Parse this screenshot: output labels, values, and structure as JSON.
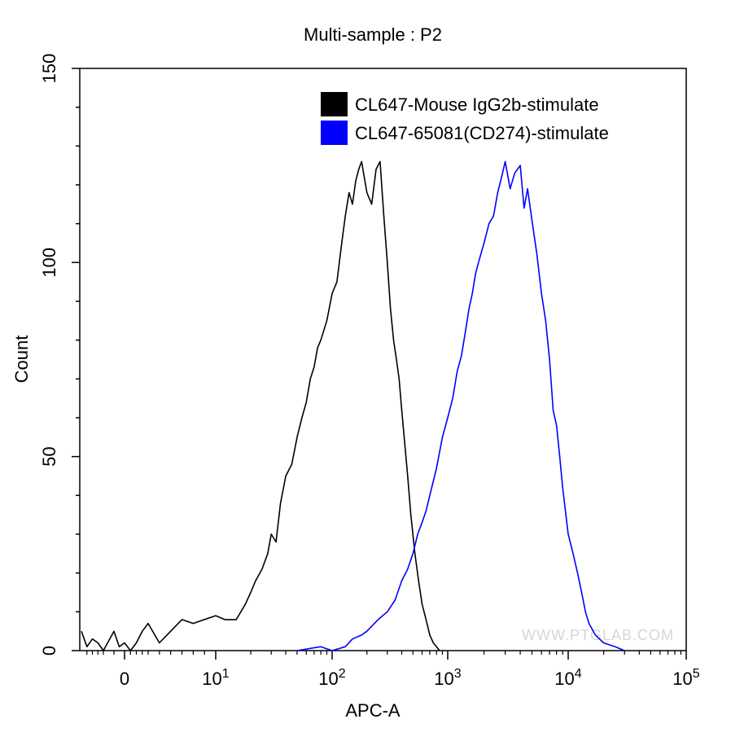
{
  "chart_data": {
    "type": "line",
    "title": "Multi-sample : P2",
    "xlabel": "APC-A",
    "ylabel": "Count",
    "x_scale": "biexponential",
    "ylim": [
      0,
      150
    ],
    "x_ticks": [
      {
        "value": 0,
        "label": "0",
        "exp": ""
      },
      {
        "value": 10,
        "label": "10",
        "exp": "1"
      },
      {
        "value": 100,
        "label": "10",
        "exp": "2"
      },
      {
        "value": 1000,
        "label": "10",
        "exp": "3"
      },
      {
        "value": 10000,
        "label": "10",
        "exp": "4"
      },
      {
        "value": 100000,
        "label": "10",
        "exp": "5"
      }
    ],
    "y_ticks": [
      0,
      50,
      100,
      150
    ],
    "grid": false,
    "legend_position": "top-right",
    "watermark": "WWW.PTGLAB.COM",
    "series": [
      {
        "name": "CL647-Mouse IgG2b-stimulate",
        "color": "#000000",
        "points": [
          [
            -12,
            5
          ],
          [
            -10,
            1
          ],
          [
            -8,
            3
          ],
          [
            -6,
            2
          ],
          [
            -4,
            0
          ],
          [
            -2,
            5
          ],
          [
            -1,
            1
          ],
          [
            0,
            2
          ],
          [
            1,
            0
          ],
          [
            2,
            2
          ],
          [
            3,
            5
          ],
          [
            4,
            7
          ],
          [
            5,
            2
          ],
          [
            6,
            5
          ],
          [
            7,
            8
          ],
          [
            8,
            7
          ],
          [
            10,
            9
          ],
          [
            12,
            8
          ],
          [
            15,
            8
          ],
          [
            18,
            12
          ],
          [
            20,
            15
          ],
          [
            22,
            18
          ],
          [
            25,
            21
          ],
          [
            28,
            25
          ],
          [
            30,
            30
          ],
          [
            33,
            28
          ],
          [
            36,
            38
          ],
          [
            40,
            45
          ],
          [
            45,
            48
          ],
          [
            50,
            55
          ],
          [
            55,
            60
          ],
          [
            60,
            64
          ],
          [
            65,
            70
          ],
          [
            70,
            73
          ],
          [
            75,
            78
          ],
          [
            80,
            80
          ],
          [
            90,
            85
          ],
          [
            100,
            92
          ],
          [
            110,
            95
          ],
          [
            120,
            104
          ],
          [
            130,
            112
          ],
          [
            140,
            118
          ],
          [
            150,
            115
          ],
          [
            160,
            121
          ],
          [
            170,
            124
          ],
          [
            180,
            126
          ],
          [
            200,
            118
          ],
          [
            220,
            115
          ],
          [
            240,
            124
          ],
          [
            260,
            126
          ],
          [
            280,
            112
          ],
          [
            300,
            100
          ],
          [
            320,
            88
          ],
          [
            340,
            80
          ],
          [
            360,
            75
          ],
          [
            380,
            70
          ],
          [
            400,
            62
          ],
          [
            420,
            55
          ],
          [
            450,
            45
          ],
          [
            480,
            35
          ],
          [
            520,
            25
          ],
          [
            560,
            18
          ],
          [
            600,
            12
          ],
          [
            650,
            8
          ],
          [
            700,
            4
          ],
          [
            750,
            2
          ],
          [
            800,
            1
          ],
          [
            850,
            0
          ]
        ]
      },
      {
        "name": "CL647-65081(CD274)-stimulate",
        "color": "#0000ff",
        "points": [
          [
            50,
            0
          ],
          [
            80,
            1
          ],
          [
            100,
            0
          ],
          [
            130,
            1
          ],
          [
            150,
            3
          ],
          [
            180,
            4
          ],
          [
            200,
            5
          ],
          [
            250,
            8
          ],
          [
            300,
            10
          ],
          [
            350,
            13
          ],
          [
            400,
            18
          ],
          [
            450,
            21
          ],
          [
            500,
            25
          ],
          [
            550,
            30
          ],
          [
            600,
            33
          ],
          [
            650,
            36
          ],
          [
            700,
            40
          ],
          [
            800,
            47
          ],
          [
            900,
            55
          ],
          [
            1000,
            60
          ],
          [
            1100,
            65
          ],
          [
            1200,
            72
          ],
          [
            1300,
            76
          ],
          [
            1400,
            82
          ],
          [
            1500,
            88
          ],
          [
            1600,
            92
          ],
          [
            1700,
            97
          ],
          [
            1800,
            100
          ],
          [
            2000,
            105
          ],
          [
            2200,
            110
          ],
          [
            2400,
            112
          ],
          [
            2600,
            118
          ],
          [
            2800,
            122
          ],
          [
            3000,
            126
          ],
          [
            3300,
            119
          ],
          [
            3600,
            123
          ],
          [
            4000,
            125
          ],
          [
            4300,
            114
          ],
          [
            4600,
            119
          ],
          [
            5000,
            111
          ],
          [
            5500,
            102
          ],
          [
            6000,
            92
          ],
          [
            6500,
            85
          ],
          [
            7000,
            75
          ],
          [
            7500,
            62
          ],
          [
            8000,
            58
          ],
          [
            8500,
            50
          ],
          [
            9000,
            42
          ],
          [
            10000,
            30
          ],
          [
            11000,
            25
          ],
          [
            12000,
            20
          ],
          [
            13000,
            15
          ],
          [
            14000,
            10
          ],
          [
            15000,
            7
          ],
          [
            17000,
            4
          ],
          [
            20000,
            2
          ],
          [
            25000,
            1
          ],
          [
            30000,
            0
          ]
        ]
      }
    ]
  }
}
